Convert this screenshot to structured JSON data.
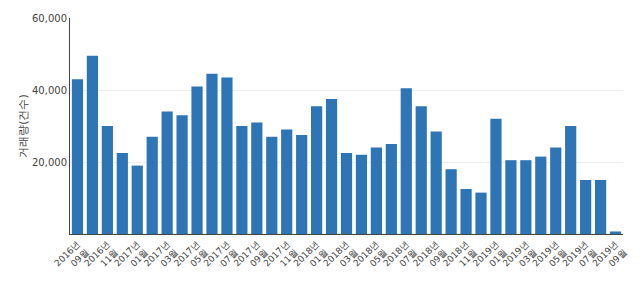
{
  "chart_data": {
    "type": "bar",
    "categories": [
      "2016년\n09월",
      null,
      "2016년\n11월",
      null,
      "2017년\n01월",
      null,
      "2017년\n03월",
      null,
      "2017년\n05월",
      null,
      "2017년\n07월",
      null,
      "2017년\n09월",
      null,
      "2017년\n11월",
      null,
      "2018년\n01월",
      null,
      "2018년\n03월",
      null,
      "2018년\n05월",
      null,
      "2018년\n07월",
      null,
      "2018년\n09월",
      null,
      "2018년\n11월",
      null,
      "2019년\n01월",
      null,
      "2019년\n03월",
      null,
      "2019년\n05월",
      null,
      "2019년\n07월",
      null,
      "2019년\n09월"
    ],
    "values": [
      43000,
      49500,
      30000,
      22500,
      19000,
      27000,
      34000,
      33000,
      41000,
      44500,
      43500,
      30000,
      31000,
      27000,
      29000,
      27500,
      35500,
      37500,
      22500,
      22000,
      24000,
      25000,
      40500,
      35500,
      28500,
      18000,
      12500,
      11500,
      32000,
      20500,
      20500,
      21500,
      24000,
      30000,
      15000,
      15000,
      700
    ],
    "color": "#2e75b6",
    "ylabel": "거래량(건수)",
    "ylim": [
      0,
      60000
    ],
    "yticks": [
      {
        "value": 20000,
        "label": "20,000"
      },
      {
        "value": 40000,
        "label": "40,000"
      },
      {
        "value": 60000,
        "label": "60,000"
      }
    ],
    "grid": true
  }
}
